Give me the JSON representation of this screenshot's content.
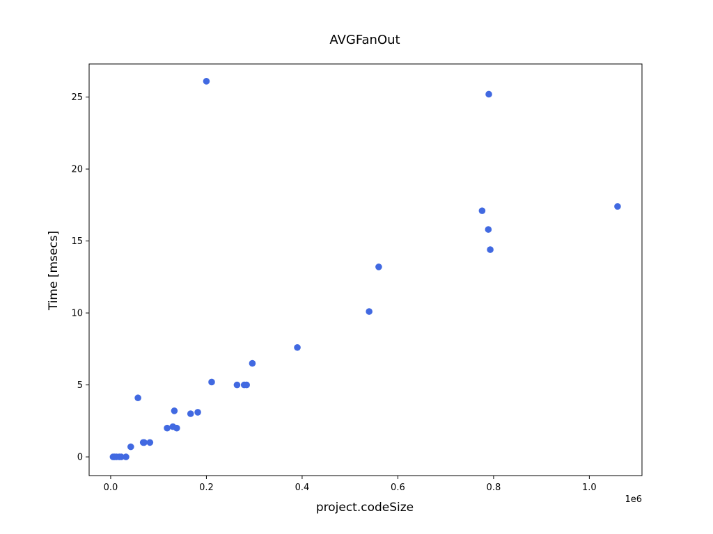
{
  "chart_data": {
    "type": "scatter",
    "title": "AVGFanOut",
    "xlabel": "project.codeSize",
    "ylabel": "Time [msecs]",
    "x_offset_label": "1e6",
    "x_scale_factor": 1000000,
    "xlim": [
      -45000,
      1110000
    ],
    "ylim": [
      -1.3,
      27.3
    ],
    "x_ticks": [
      0,
      200000,
      400000,
      600000,
      800000,
      1000000
    ],
    "x_tick_labels": [
      "0.0",
      "0.2",
      "0.4",
      "0.6",
      "0.8",
      "1.0"
    ],
    "y_ticks": [
      0,
      5,
      10,
      15,
      20,
      25
    ],
    "y_tick_labels": [
      "0",
      "5",
      "10",
      "15",
      "20",
      "25"
    ],
    "grid": false,
    "marker_color": "#4169e1",
    "points": [
      {
        "x": 5000,
        "y": 0
      },
      {
        "x": 8000,
        "y": 0
      },
      {
        "x": 12000,
        "y": 0
      },
      {
        "x": 18000,
        "y": 0
      },
      {
        "x": 22000,
        "y": 0
      },
      {
        "x": 32000,
        "y": 0
      },
      {
        "x": 42000,
        "y": 0.7
      },
      {
        "x": 57000,
        "y": 4.1
      },
      {
        "x": 68000,
        "y": 1.0
      },
      {
        "x": 70000,
        "y": 1.0
      },
      {
        "x": 82000,
        "y": 1.0
      },
      {
        "x": 118000,
        "y": 2.0
      },
      {
        "x": 130000,
        "y": 2.1
      },
      {
        "x": 133000,
        "y": 3.2
      },
      {
        "x": 138000,
        "y": 2.0
      },
      {
        "x": 167000,
        "y": 3.0
      },
      {
        "x": 182000,
        "y": 3.1
      },
      {
        "x": 200000,
        "y": 26.1
      },
      {
        "x": 211000,
        "y": 5.2
      },
      {
        "x": 264000,
        "y": 5.0
      },
      {
        "x": 279000,
        "y": 5.0
      },
      {
        "x": 284000,
        "y": 5.0
      },
      {
        "x": 296000,
        "y": 6.5
      },
      {
        "x": 390000,
        "y": 7.6
      },
      {
        "x": 540000,
        "y": 10.1
      },
      {
        "x": 560000,
        "y": 13.2
      },
      {
        "x": 776000,
        "y": 17.1
      },
      {
        "x": 789000,
        "y": 15.8
      },
      {
        "x": 790000,
        "y": 25.2
      },
      {
        "x": 793000,
        "y": 14.4
      },
      {
        "x": 1059000,
        "y": 17.4
      }
    ]
  }
}
